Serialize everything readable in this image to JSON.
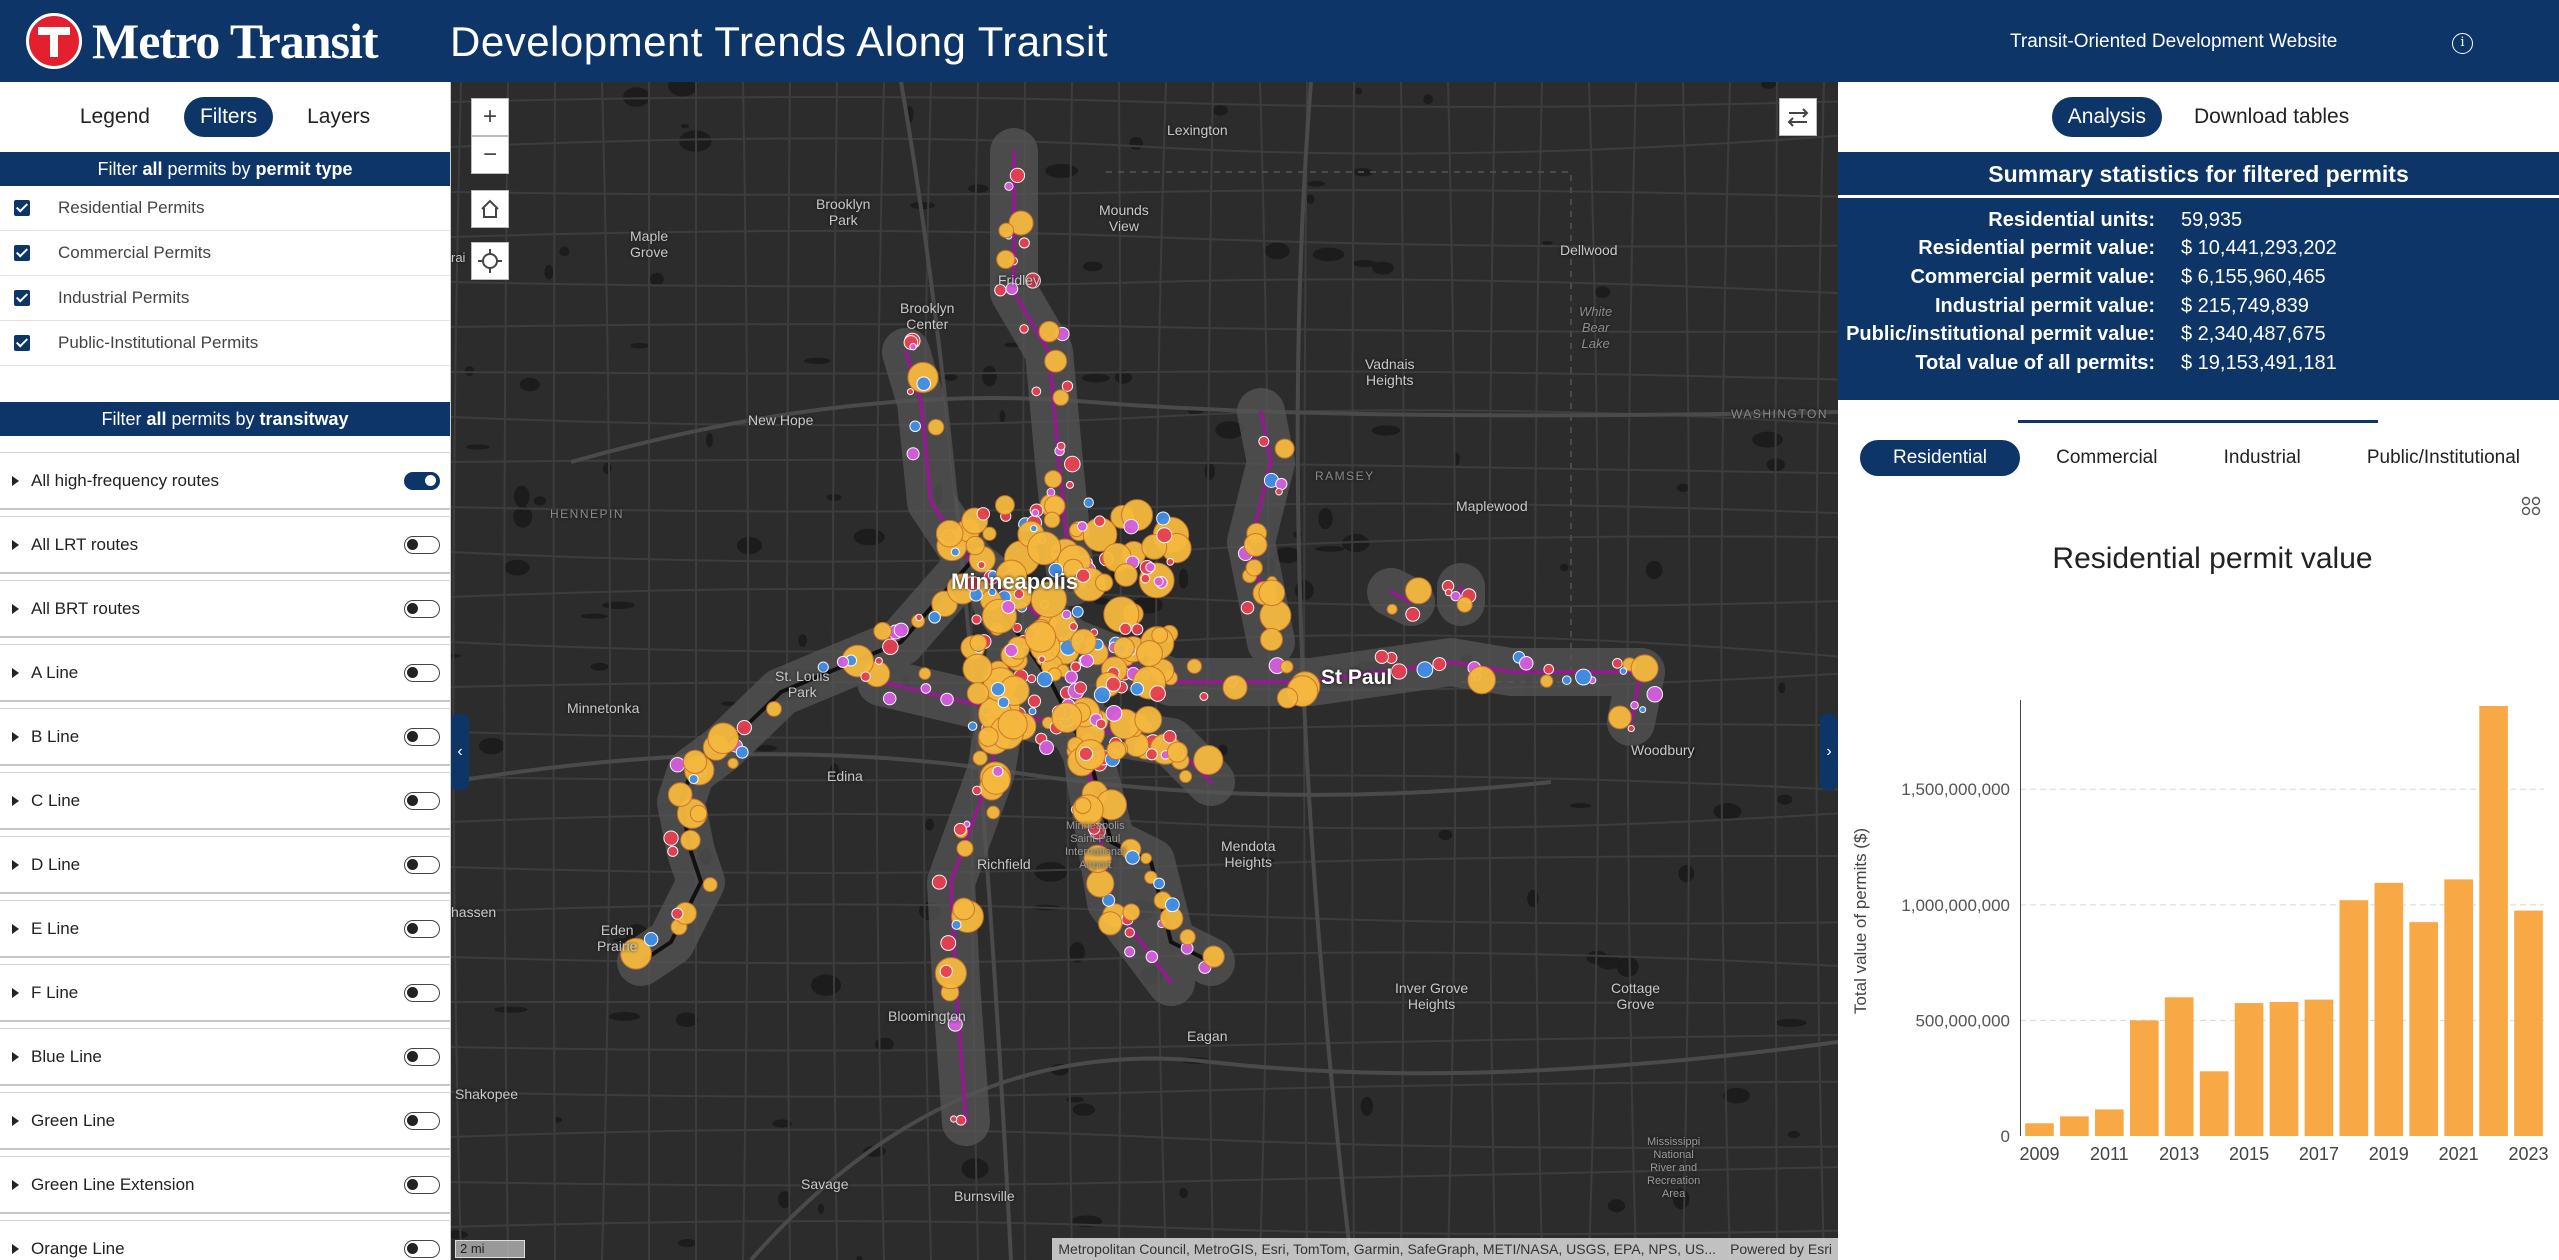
{
  "header": {
    "logo_text": "Metro Transit",
    "title": "Development Trends Along Transit",
    "tod_link": "Transit-Oriented Development Website",
    "info_icon": "info-icon"
  },
  "left_panel": {
    "tabs": [
      {
        "label": "Legend",
        "active": false
      },
      {
        "label": "Filters",
        "active": true
      },
      {
        "label": "Layers",
        "active": false
      }
    ],
    "permit_type_header": {
      "pre": "Filter ",
      "b1": "all",
      "mid": " permits by ",
      "b2": "permit type"
    },
    "permit_types": [
      {
        "label": "Residential Permits",
        "checked": true
      },
      {
        "label": "Commercial Permits",
        "checked": true
      },
      {
        "label": "Industrial Permits",
        "checked": true
      },
      {
        "label": "Public-Institutional Permits",
        "checked": true
      }
    ],
    "transitway_header": {
      "pre": "Filter ",
      "b1": "all",
      "mid": " permits by ",
      "b2": "transitway"
    },
    "routes": [
      {
        "label": "All high-frequency routes",
        "on": true
      },
      {
        "label": "All LRT routes",
        "on": false
      },
      {
        "label": "All BRT routes",
        "on": false
      },
      {
        "label": "A Line",
        "on": false
      },
      {
        "label": "B Line",
        "on": false
      },
      {
        "label": "C Line",
        "on": false
      },
      {
        "label": "D Line",
        "on": false
      },
      {
        "label": "E Line",
        "on": false
      },
      {
        "label": "F Line",
        "on": false
      },
      {
        "label": "Blue Line",
        "on": false
      },
      {
        "label": "Green Line",
        "on": false
      },
      {
        "label": "Green Line Extension",
        "on": false
      },
      {
        "label": "Orange Line",
        "on": false
      }
    ]
  },
  "map": {
    "zoom_in": "+",
    "zoom_out": "−",
    "places": {
      "lexington": "Lexington",
      "brooklyn_park": "Brooklyn\nPark",
      "mounds_view": "Mounds\nView",
      "maple_grove": "Maple\nGrove",
      "fridley": "Fridley",
      "dellwood": "Dellwood",
      "brooklyn_center": "Brooklyn\nCenter",
      "white_bear_lake": "White\nBear\nLake",
      "vadnais_heights": "Vadnais\nHeights",
      "washington": "WASHINGTON",
      "new_hope": "New Hope",
      "ramsey": "RAMSEY",
      "hennepin": "HENNEPIN",
      "maplewood": "Maplewood",
      "minneapolis": "Minneapolis",
      "st_louis_park": "St. Louis\nPark",
      "st_paul": "St Paul",
      "minnetonka": "Minnetonka",
      "woodbury": "Woodbury",
      "edina": "Edina",
      "msp_airport": "Minneapolis\nSaint Paul\nInternational\nAirport",
      "mendota_heights": "Mendota\nHeights",
      "richfield": "Richfield",
      "chanhassen": "hassen",
      "eden_prairie": "Eden\nPrairie",
      "inver_grove_heights": "Inver Grove\nHeights",
      "cottage_grove": "Cottage\nGrove",
      "bloomington": "Bloomington",
      "eagan": "Eagan",
      "shakopee": "Shakopee",
      "savage": "Savage",
      "burnsville": "Burnsville",
      "mississippi_area": "Mississippi\nNational\nRiver and\nRecreation\nArea",
      "edge_letters": "rai"
    },
    "attribution": "Metropolitan Council, MetroGIS, Esri, TomTom, Garmin, SafeGraph, METI/NASA, USGS, EPA, NPS, US...",
    "powered_by": "Powered by Esri",
    "scale": "2 mi",
    "colors": {
      "residential": "#f5b93e",
      "commercial": "#e64052",
      "industrial": "#3f8fe8",
      "public": "#d65ee0",
      "route_purple": "#8e1f8a",
      "route_black": "#111111",
      "buffer": "#555555"
    }
  },
  "right_panel": {
    "tabs": [
      {
        "label": "Analysis",
        "active": true
      },
      {
        "label": "Download tables",
        "active": false
      }
    ],
    "stats_title": "Summary statistics for filtered permits",
    "stats": [
      {
        "label": "Residential units:",
        "value": "59,935"
      },
      {
        "label": "Residential permit value:",
        "value": "$ 10,441,293,202"
      },
      {
        "label": "Commercial permit value:",
        "value": "$ 6,155,960,465"
      },
      {
        "label": "Industrial permit value:",
        "value": "$ 215,749,839"
      },
      {
        "label": "Public/institutional permit value:",
        "value": "$ 2,340,487,675"
      },
      {
        "label": "Total value of all permits:",
        "value": "$ 19,153,491,181"
      }
    ],
    "type_tabs": [
      {
        "label": "Residential",
        "active": true
      },
      {
        "label": "Commercial",
        "active": false
      },
      {
        "label": "Industrial",
        "active": false
      },
      {
        "label": "Public/Institutional",
        "active": false
      }
    ],
    "grid_icon": "grid-icon"
  },
  "chart_data": {
    "type": "bar",
    "title": "Residential permit value",
    "ylabel": "Total value of permits ($)",
    "xlabel": "",
    "categories": [
      "2009",
      "2010",
      "2011",
      "2012",
      "2013",
      "2014",
      "2015",
      "2016",
      "2017",
      "2018",
      "2019",
      "2020",
      "2021",
      "2022",
      "2023"
    ],
    "values": [
      55000000,
      85000000,
      115000000,
      500000000,
      600000000,
      280000000,
      575000000,
      580000000,
      590000000,
      1020000000,
      1095000000,
      925000000,
      1110000000,
      1860000000,
      975000000
    ],
    "x_tick_labels": [
      "2009",
      "2011",
      "2013",
      "2015",
      "2017",
      "2019",
      "2021",
      "2023"
    ],
    "y_ticks": [
      0,
      500000000,
      1000000000,
      1500000000
    ],
    "y_tick_labels": [
      "0",
      "500,000,000",
      "1,000,000,000",
      "1,500,000,000"
    ],
    "ylim": [
      0,
      1860000000
    ],
    "grid": true,
    "bar_color": "#f8a945"
  }
}
